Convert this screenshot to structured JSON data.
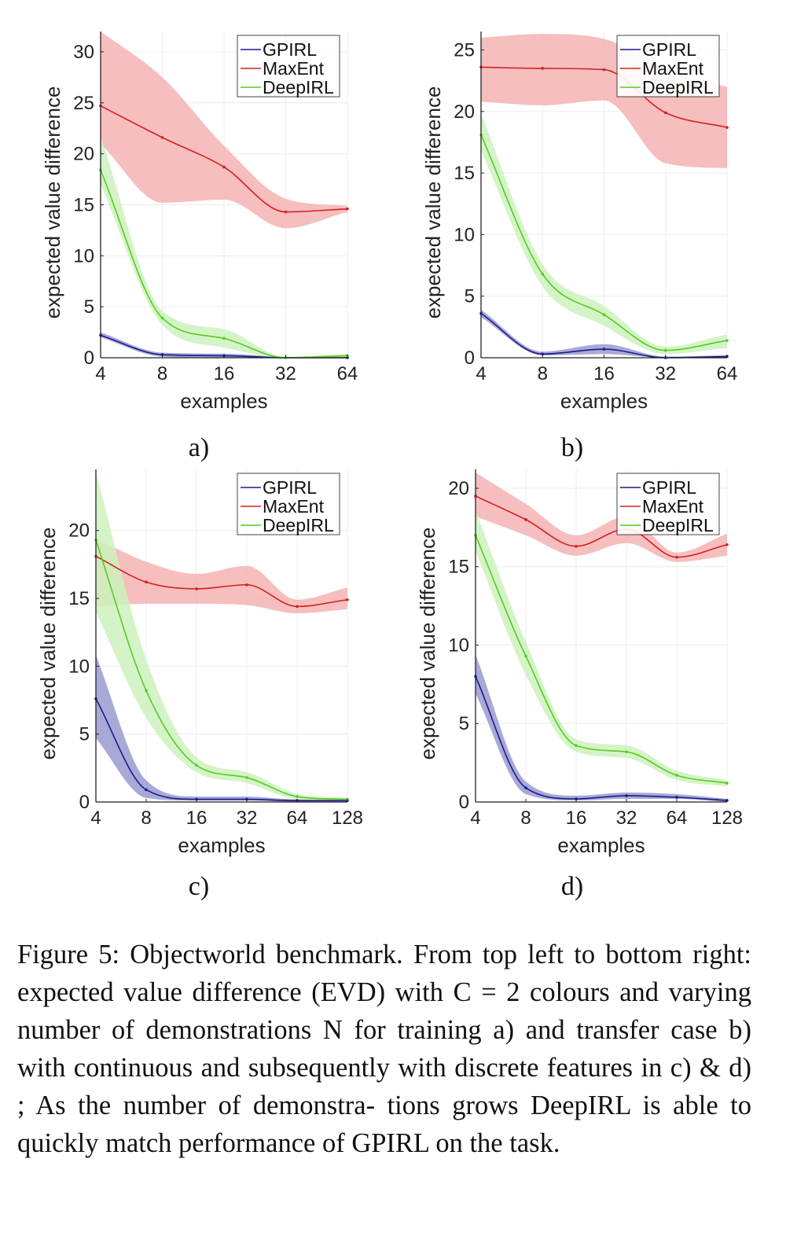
{
  "caption": "Figure 5: Objectworld benchmark. From top left to bottom right: expected value difference (EVD) with C = 2 colours and varying number of demonstrations N for training a) and transfer case b) with continuous and subsequently with discrete features in c) & d) ; As the number of demonstra- tions grows DeepIRL is able to quickly match performance of GPIRL on the task.",
  "colors": {
    "GPIRL": "#1a1a8c",
    "MaxEnt": "#d42020",
    "DeepIRL": "#55cc22",
    "GPIRL_band": "#9a9ad0",
    "MaxEnt_band": "#f5b3b3",
    "DeepIRL_band": "#cdf2bd"
  },
  "chart_data": [
    {
      "type": "line",
      "panel_label": "a)",
      "xlabel": "examples",
      "ylabel": "expected value difference",
      "x": [
        4,
        8,
        16,
        32,
        64
      ],
      "x_scale": "log2",
      "xlim": [
        4,
        64
      ],
      "ylim": [
        0,
        32
      ],
      "yticks": [
        0,
        5,
        10,
        15,
        20,
        25,
        30
      ],
      "legend": "top-right",
      "series": [
        {
          "name": "GPIRL",
          "values": [
            2.2,
            0.3,
            0.2,
            0.0,
            0.0
          ],
          "lower": [
            2.0,
            0.1,
            0.0,
            0.0,
            0.0
          ],
          "upper": [
            2.5,
            0.5,
            0.4,
            0.1,
            0.1
          ]
        },
        {
          "name": "MaxEnt",
          "values": [
            24.7,
            21.6,
            18.7,
            14.3,
            14.6
          ],
          "lower": [
            21.0,
            15.2,
            15.5,
            12.7,
            14.3
          ],
          "upper": [
            32.0,
            27.5,
            20.8,
            15.6,
            14.9
          ]
        },
        {
          "name": "DeepIRL",
          "values": [
            18.4,
            3.9,
            1.9,
            0.0,
            0.2
          ],
          "lower": [
            17.0,
            3.2,
            1.0,
            0.0,
            0.0
          ],
          "upper": [
            21.7,
            4.6,
            2.8,
            0.1,
            0.4
          ]
        }
      ]
    },
    {
      "type": "line",
      "panel_label": "b)",
      "xlabel": "examples",
      "ylabel": "expected value difference",
      "x": [
        4,
        8,
        16,
        32,
        64
      ],
      "x_scale": "log2",
      "xlim": [
        4,
        64
      ],
      "ylim": [
        0,
        26.5
      ],
      "yticks": [
        0,
        5,
        10,
        15,
        20,
        25
      ],
      "legend": "top-right",
      "series": [
        {
          "name": "GPIRL",
          "values": [
            3.6,
            0.3,
            0.7,
            0.0,
            0.1
          ],
          "lower": [
            3.3,
            0.2,
            0.3,
            0.0,
            0.0
          ],
          "upper": [
            3.9,
            0.5,
            1.1,
            0.1,
            0.2
          ]
        },
        {
          "name": "MaxEnt",
          "values": [
            23.6,
            23.5,
            23.4,
            19.9,
            18.7
          ],
          "lower": [
            20.8,
            20.5,
            20.9,
            15.8,
            15.4
          ],
          "upper": [
            26.0,
            26.3,
            25.9,
            23.3,
            22.0
          ]
        },
        {
          "name": "DeepIRL",
          "values": [
            18.1,
            6.8,
            3.5,
            0.6,
            1.4
          ],
          "lower": [
            16.8,
            5.8,
            2.6,
            0.3,
            0.8
          ],
          "upper": [
            19.8,
            7.6,
            4.2,
            0.9,
            1.9
          ]
        }
      ]
    },
    {
      "type": "line",
      "panel_label": "c)",
      "xlabel": "examples",
      "ylabel": "expected value difference",
      "x": [
        4,
        8,
        16,
        32,
        64,
        128
      ],
      "x_scale": "log2",
      "xlim": [
        4,
        128
      ],
      "ylim": [
        0,
        24.5
      ],
      "yticks": [
        0,
        5,
        10,
        15,
        20
      ],
      "legend": "top-right",
      "series": [
        {
          "name": "GPIRL",
          "values": [
            7.6,
            0.9,
            0.2,
            0.2,
            0.1,
            0.1
          ],
          "lower": [
            4.7,
            0.3,
            0.1,
            0.1,
            0.0,
            0.0
          ],
          "upper": [
            10.8,
            1.6,
            0.4,
            0.4,
            0.2,
            0.2
          ]
        },
        {
          "name": "MaxEnt",
          "values": [
            18.1,
            16.2,
            15.7,
            16.0,
            14.4,
            14.9
          ],
          "lower": [
            14.4,
            14.6,
            14.6,
            14.5,
            13.9,
            14.2
          ],
          "upper": [
            19.4,
            17.7,
            16.8,
            17.4,
            14.9,
            15.8
          ]
        },
        {
          "name": "DeepIRL",
          "values": [
            19.3,
            8.2,
            2.7,
            1.8,
            0.4,
            0.2
          ],
          "lower": [
            14.0,
            6.2,
            2.2,
            1.4,
            0.2,
            0.1
          ],
          "upper": [
            24.3,
            10.5,
            3.3,
            2.2,
            0.6,
            0.3
          ]
        }
      ]
    },
    {
      "type": "line",
      "panel_label": "d)",
      "xlabel": "examples",
      "ylabel": "expected value difference",
      "x": [
        4,
        8,
        16,
        32,
        64,
        128
      ],
      "x_scale": "log2",
      "xlim": [
        4,
        128
      ],
      "ylim": [
        0,
        21.2
      ],
      "yticks": [
        0,
        5,
        10,
        15,
        20
      ],
      "legend": "top-right",
      "series": [
        {
          "name": "GPIRL",
          "values": [
            8.0,
            0.9,
            0.2,
            0.4,
            0.3,
            0.1
          ],
          "lower": [
            6.9,
            0.5,
            0.1,
            0.2,
            0.2,
            0.0
          ],
          "upper": [
            9.4,
            1.3,
            0.4,
            0.6,
            0.5,
            0.2
          ]
        },
        {
          "name": "MaxEnt",
          "values": [
            19.5,
            18.0,
            16.3,
            17.4,
            15.6,
            16.4
          ],
          "lower": [
            18.2,
            17.0,
            15.7,
            16.5,
            15.3,
            15.7
          ],
          "upper": [
            21.0,
            19.0,
            17.0,
            18.2,
            15.9,
            17.1
          ]
        },
        {
          "name": "DeepIRL",
          "values": [
            17.0,
            9.3,
            3.6,
            3.2,
            1.7,
            1.2
          ],
          "lower": [
            16.0,
            8.1,
            3.2,
            2.8,
            1.4,
            1.0
          ],
          "upper": [
            18.6,
            10.2,
            4.0,
            3.6,
            2.0,
            1.4
          ]
        }
      ]
    }
  ]
}
